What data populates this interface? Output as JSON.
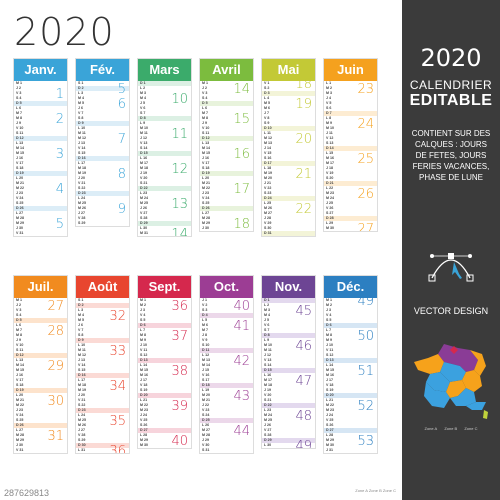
{
  "year": "2020",
  "side": {
    "year": "2020",
    "line1": "CALENDRIER",
    "line2": "EDITABLE",
    "description": "CONTIENT SUR DES CALQUES : JOURS DE FETES, JOURS FERIES VACANCES, PHASE DE LUNE",
    "vector": "VECTOR DESIGN",
    "legend": [
      "Zone A",
      "Zone B",
      "Zone C"
    ],
    "colors": {
      "zoneA": "#f6a21b",
      "zoneB": "#3ba1df",
      "zoneC": "#8a3c96",
      "corse": "#c0d23c"
    }
  },
  "footer": {
    "left_id": "287629813",
    "right_legend": [
      "Zone A",
      "Zone B",
      "Zone C"
    ]
  },
  "months": [
    {
      "name": "Janv.",
      "color": "#3aa4d8",
      "light": "#dcedf7",
      "weeks": [
        {
          "n": "1",
          "row": 2
        },
        {
          "n": "2",
          "row": 7
        },
        {
          "n": "3",
          "row": 14
        },
        {
          "n": "4",
          "row": 21
        },
        {
          "n": "5",
          "row": 28
        }
      ]
    },
    {
      "name": "Fév.",
      "color": "#3aa4d8",
      "light": "#dcedf7",
      "weeks": [
        {
          "n": "5",
          "row": 1
        },
        {
          "n": "6",
          "row": 4
        },
        {
          "n": "7",
          "row": 11
        },
        {
          "n": "8",
          "row": 18
        },
        {
          "n": "9",
          "row": 25
        }
      ]
    },
    {
      "name": "Mars",
      "color": "#3bab6b",
      "light": "#dcf0e4",
      "weeks": [
        {
          "n": "10",
          "row": 3
        },
        {
          "n": "11",
          "row": 10
        },
        {
          "n": "12",
          "row": 17
        },
        {
          "n": "13",
          "row": 24
        },
        {
          "n": "14",
          "row": 30
        }
      ]
    },
    {
      "name": "Avril",
      "color": "#7cbc3e",
      "light": "#e8f3dc",
      "weeks": [
        {
          "n": "14",
          "row": 1
        },
        {
          "n": "15",
          "row": 7
        },
        {
          "n": "16",
          "row": 14
        },
        {
          "n": "17",
          "row": 21
        },
        {
          "n": "18",
          "row": 28
        }
      ]
    },
    {
      "name": "Mai",
      "color": "#c3c936",
      "light": "#f3f4d8",
      "weeks": [
        {
          "n": "18",
          "row": 0
        },
        {
          "n": "19",
          "row": 4
        },
        {
          "n": "20",
          "row": 11
        },
        {
          "n": "21",
          "row": 18
        },
        {
          "n": "22",
          "row": 25
        }
      ]
    },
    {
      "name": "Juin",
      "color": "#f5a11e",
      "light": "#fdecd2",
      "weeks": [
        {
          "n": "23",
          "row": 1
        },
        {
          "n": "24",
          "row": 8
        },
        {
          "n": "25",
          "row": 15
        },
        {
          "n": "26",
          "row": 22
        },
        {
          "n": "27",
          "row": 29
        }
      ]
    },
    {
      "name": "Juil.",
      "color": "#f18b1f",
      "light": "#fde3cc",
      "weeks": [
        {
          "n": "27",
          "row": 1
        },
        {
          "n": "28",
          "row": 6
        },
        {
          "n": "29",
          "row": 13
        },
        {
          "n": "30",
          "row": 20
        },
        {
          "n": "31",
          "row": 27
        }
      ]
    },
    {
      "name": "Août",
      "color": "#e8462f",
      "light": "#fbdad5",
      "weeks": [
        {
          "n": "32",
          "row": 3
        },
        {
          "n": "33",
          "row": 10
        },
        {
          "n": "34",
          "row": 17
        },
        {
          "n": "35",
          "row": 24
        },
        {
          "n": "36",
          "row": 30
        }
      ]
    },
    {
      "name": "Sept.",
      "color": "#d5284d",
      "light": "#f7d4dc",
      "weeks": [
        {
          "n": "36",
          "row": 1
        },
        {
          "n": "37",
          "row": 7
        },
        {
          "n": "38",
          "row": 14
        },
        {
          "n": "39",
          "row": 21
        },
        {
          "n": "40",
          "row": 28
        }
      ]
    },
    {
      "name": "Oct.",
      "color": "#9c3d94",
      "light": "#ecd8ea",
      "weeks": [
        {
          "n": "40",
          "row": 1
        },
        {
          "n": "41",
          "row": 5
        },
        {
          "n": "42",
          "row": 12
        },
        {
          "n": "43",
          "row": 19
        },
        {
          "n": "44",
          "row": 26
        }
      ]
    },
    {
      "name": "Nov.",
      "color": "#6d4594",
      "light": "#e3d9ee",
      "weeks": [
        {
          "n": "45",
          "row": 2
        },
        {
          "n": "46",
          "row": 9
        },
        {
          "n": "47",
          "row": 16
        },
        {
          "n": "48",
          "row": 23
        },
        {
          "n": "49",
          "row": 29
        }
      ]
    },
    {
      "name": "Déc.",
      "color": "#2c7fc1",
      "light": "#d6e6f4",
      "weeks": [
        {
          "n": "49",
          "row": 0
        },
        {
          "n": "50",
          "row": 7
        },
        {
          "n": "51",
          "row": 14
        },
        {
          "n": "52",
          "row": 21
        },
        {
          "n": "53",
          "row": 28
        }
      ]
    }
  ]
}
